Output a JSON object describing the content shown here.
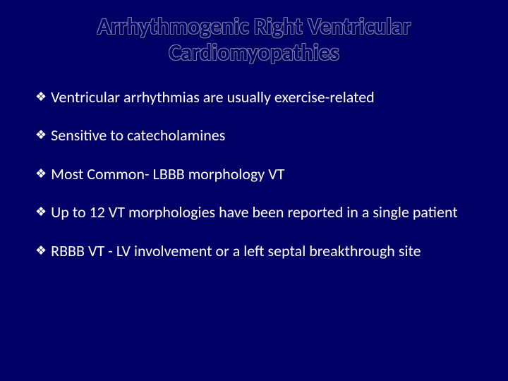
{
  "slide": {
    "background_color": "#000066",
    "title": {
      "text": "Arrhythmogenic Right Ventricular Cardiomyopathies",
      "color": "#000066",
      "outline_color": "#7a7aaa",
      "fontsize": 32,
      "fontweight": "bold",
      "align": "center"
    },
    "bullets": {
      "marker": "❖",
      "marker_color": "#ffffff",
      "text_color": "#ffffff",
      "fontsize": 22,
      "items": [
        "Ventricular arrhythmias are usually exercise-related",
        "Sensitive to catecholamines",
        "Most Common- LBBB morphology VT",
        "Up to 12 VT morphologies have been reported in a single patient",
        "RBBB VT - LV involvement or a left septal breakthrough site"
      ]
    }
  }
}
